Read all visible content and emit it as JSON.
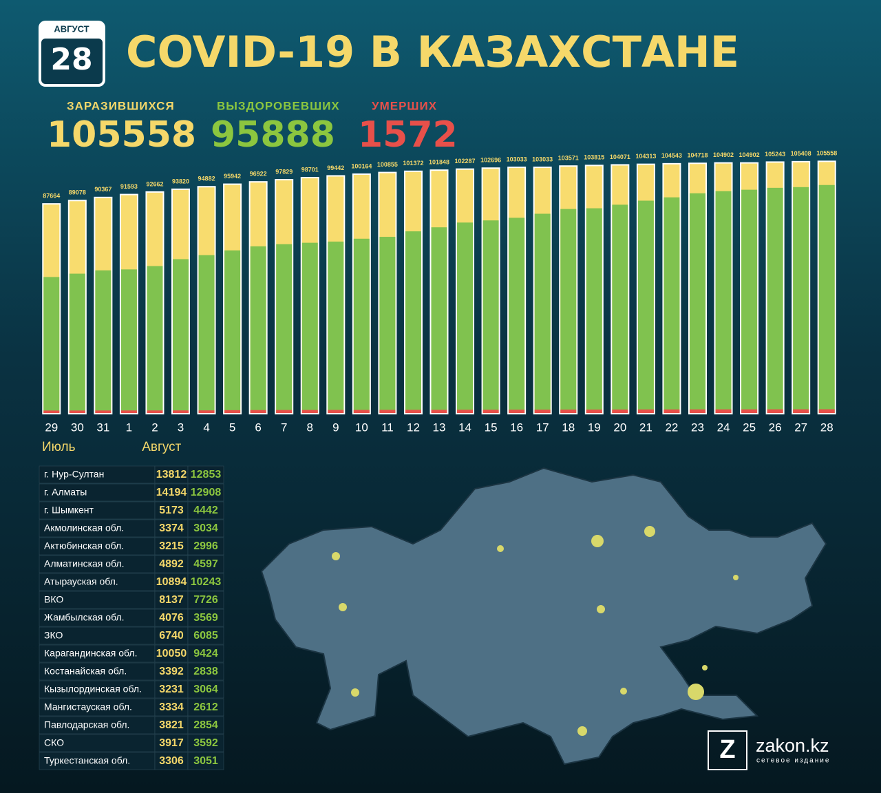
{
  "header": {
    "badge_month": "АВГУСТ",
    "badge_day": "28",
    "title": "COVID-19 В КАЗАХСТАНЕ"
  },
  "summary": [
    {
      "label": "ЗАРАЗИВШИХСЯ",
      "value": "105558"
    },
    {
      "label": "ВЫЗДОРОВЕВШИХ",
      "value": "95888"
    },
    {
      "label": "УМЕРШИХ",
      "value": "1572"
    }
  ],
  "chart_data": {
    "type": "overlap-bar",
    "categories": [
      "29",
      "30",
      "31",
      "1",
      "2",
      "3",
      "4",
      "5",
      "6",
      "7",
      "8",
      "9",
      "10",
      "11",
      "12",
      "13",
      "14",
      "15",
      "16",
      "17",
      "18",
      "19",
      "20",
      "21",
      "22",
      "23",
      "24",
      "25",
      "26",
      "27",
      "28"
    ],
    "annotations": [
      "Июль",
      "Август"
    ],
    "ylim": [
      0,
      110000
    ],
    "series": [
      {
        "name": "Заразившихся",
        "color": "#f8dc6e",
        "values": [
          87664,
          89078,
          90367,
          91593,
          92662,
          93820,
          94882,
          95942,
          96922,
          97829,
          98701,
          99442,
          100164,
          100855,
          101372,
          101848,
          102287,
          102696,
          103033,
          103033,
          103571,
          103815,
          104071,
          104313,
          104543,
          104718,
          104902,
          104902,
          105243,
          105408,
          105558
        ]
      },
      {
        "name": "Выздоровевших",
        "color": "#80c24f",
        "values": [
          57200,
          58600,
          60000,
          60400,
          61800,
          64700,
          66400,
          68400,
          70100,
          71000,
          71600,
          72100,
          73300,
          74100,
          76400,
          78100,
          80100,
          81000,
          82100,
          83800,
          85800,
          86100,
          87600,
          89300,
          90700,
          92400,
          93300,
          93900,
          94700,
          95000,
          95888
        ]
      },
      {
        "name": "Умерших",
        "color": "#e8504a",
        "values": [
          1050,
          1060,
          1070,
          1080,
          1090,
          1100,
          1110,
          1200,
          1250,
          1270,
          1290,
          1300,
          1310,
          1330,
          1340,
          1350,
          1380,
          1390,
          1410,
          1420,
          1450,
          1460,
          1480,
          1500,
          1510,
          1520,
          1530,
          1540,
          1550,
          1560,
          1572
        ]
      }
    ]
  },
  "table": {
    "rows": [
      [
        "г. Нур-Султан",
        "13812",
        "12853"
      ],
      [
        "г. Алматы",
        "14194",
        "12908"
      ],
      [
        "г. Шымкент",
        "5173",
        "4442"
      ],
      [
        "Акмолинская обл.",
        "3374",
        "3034"
      ],
      [
        "Актюбинская обл.",
        "3215",
        "2996"
      ],
      [
        "Алматинская обл.",
        "4892",
        "4597"
      ],
      [
        "Атырауская обл.",
        "10894",
        "10243"
      ],
      [
        "ВКО",
        "8137",
        "7726"
      ],
      [
        "Жамбылская обл.",
        "4076",
        "3569"
      ],
      [
        "ЗКО",
        "6740",
        "6085"
      ],
      [
        "Карагандинская обл.",
        "10050",
        "9424"
      ],
      [
        "Костанайская обл.",
        "3392",
        "2838"
      ],
      [
        "Кызылординская обл.",
        "3231",
        "3064"
      ],
      [
        "Мангистауская обл.",
        "3334",
        "2612"
      ],
      [
        "Павлодарская обл.",
        "3821",
        "2854"
      ],
      [
        "СКО",
        "3917",
        "3592"
      ],
      [
        "Туркестанская обл.",
        "3306",
        "3051"
      ]
    ]
  },
  "footer": {
    "logo_letter": "Z",
    "logo_text": "zakon.kz",
    "logo_subtext": "сетевое издание"
  }
}
